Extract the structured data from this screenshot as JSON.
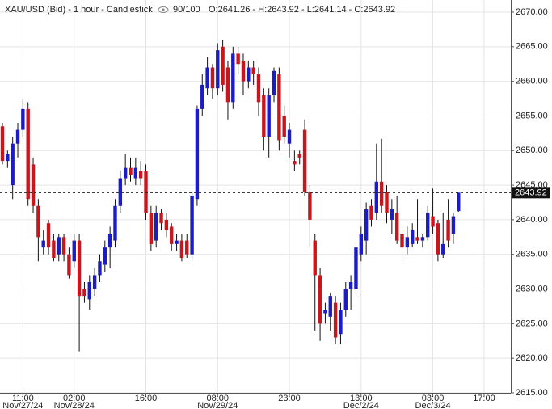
{
  "chart_data": {
    "type": "candlestick",
    "title": "XAU/USD (Bid) - 1 hour - Candlestick",
    "bar_count": "90/100",
    "ohlc_label": "O:2641.26 - H:2643.92 - L:2641.14 - C:2643.92",
    "categories": [
      null,
      null,
      null,
      null,
      "11:00",
      null,
      null,
      null,
      null,
      null,
      null,
      null,
      null,
      null,
      "02:00",
      null,
      null,
      null,
      null,
      null,
      null,
      null,
      null,
      null,
      null,
      null,
      null,
      null,
      "16:00",
      null,
      null,
      null,
      null,
      null,
      null,
      null,
      null,
      null,
      null,
      null,
      null,
      null,
      "08:00",
      null,
      null,
      null,
      null,
      null,
      null,
      null,
      null,
      null,
      null,
      null,
      null,
      null,
      "23:00",
      null,
      null,
      null,
      null,
      null,
      null,
      null,
      null,
      null,
      null,
      null,
      null,
      null,
      "13:00",
      null,
      null,
      null,
      null,
      null,
      null,
      null,
      null,
      null,
      null,
      null,
      null,
      null,
      "03:00",
      null,
      null,
      null,
      null,
      null,
      null,
      null,
      null,
      null,
      "17:00",
      null,
      null,
      null,
      null,
      null
    ],
    "dates": [
      null,
      null,
      null,
      null,
      "Nov/27/24",
      null,
      null,
      null,
      null,
      null,
      null,
      null,
      null,
      null,
      "Nov/28/24",
      null,
      null,
      null,
      null,
      null,
      null,
      null,
      null,
      null,
      null,
      null,
      null,
      null,
      null,
      null,
      null,
      null,
      null,
      null,
      null,
      null,
      null,
      null,
      null,
      null,
      null,
      null,
      "Nov/29/24",
      null,
      null,
      null,
      null,
      null,
      null,
      null,
      null,
      null,
      null,
      null,
      null,
      null,
      null,
      null,
      null,
      null,
      null,
      null,
      null,
      null,
      null,
      null,
      null,
      null,
      null,
      null,
      "Dec/2/24",
      null,
      null,
      null,
      null,
      null,
      null,
      null,
      null,
      null,
      null,
      null,
      null,
      null,
      "Dec/3/24",
      null,
      null,
      null,
      null,
      null,
      null,
      null,
      null,
      null,
      null,
      null,
      null,
      null,
      null,
      null
    ],
    "open": [
      2653.5,
      2648.5,
      2645,
      2651,
      2653,
      2656,
      2648,
      2642,
      2636,
      2639.5,
      2637,
      2635,
      2637.5,
      2635,
      2634,
      2637,
      2630,
      2628.5,
      2630,
      2632,
      2633.5,
      2636,
      2637,
      2642,
      2646,
      2647.5,
      2646,
      2647,
      2647,
      2641,
      2637,
      2641,
      2640,
      2639,
      2636.5,
      2637,
      2637,
      2635,
      2643,
      2656,
      2659,
      2662,
      2659,
      2665,
      2662,
      2657,
      2664,
      2663,
      2660,
      2662,
      2661,
      2658,
      2652,
      2658,
      2661,
      2655,
      2651,
      2648.5,
      2649.5,
      2653,
      2644,
      2637,
      2632,
      2626.5,
      2626,
      2628,
      2623.5,
      2627,
      2630,
      2630,
      2635,
      2637,
      2642,
      2641,
      2645.5,
      2644,
      2640,
      2641,
      2638,
      2636,
      2636.5,
      2637.5,
      2637,
      2637.5,
      2640.5,
      2639.5,
      2635,
      2640,
      2638,
      2641.26,
      null,
      null,
      null,
      null,
      null,
      null,
      null,
      null,
      null,
      null
    ],
    "high": [
      2654,
      2650,
      2652,
      2654,
      2657.5,
      2657,
      2649,
      2643,
      2638.5,
      2640,
      2638,
      2638,
      2638,
      2636,
      2638,
      2638,
      2631,
      2632,
      2633,
      2635,
      2637,
      2639,
      2643,
      2647,
      2649.5,
      2649,
      2649,
      2648.5,
      2648,
      2642,
      2642,
      2641.5,
      2641,
      2639.5,
      2638,
      2638,
      2638,
      2644,
      2656.5,
      2661,
      2663.5,
      2662.5,
      2665.5,
      2666,
      2663,
      2665,
      2665,
      2664,
      2663,
      2663,
      2662,
      2659,
      2659,
      2662,
      2662,
      2656.5,
      2654,
      2650,
      2650,
      2654.5,
      2645,
      2638,
      2633,
      2628,
      2629.5,
      2629,
      2628,
      2631,
      2632,
      2637,
      2639,
      2642.5,
      2643,
      2651,
      2651.7,
      2645,
      2643,
      2643.5,
      2639,
      2639,
      2639.5,
      2643,
      2638,
      2642,
      2644.5,
      2640,
      2641,
      2643,
      2641,
      2643.92,
      null,
      null,
      null,
      null,
      null,
      null,
      null,
      null,
      null,
      null
    ],
    "low": [
      2648,
      2647.5,
      2643,
      2649,
      2652,
      2642,
      2641,
      2634,
      2635,
      2635,
      2634,
      2634,
      2634,
      2631.5,
      2633,
      2621,
      2628,
      2627,
      2629,
      2631,
      2632.5,
      2633,
      2636,
      2641,
      2645,
      2645.5,
      2645,
      2645,
      2640,
      2635.5,
      2636,
      2638.5,
      2637.5,
      2635.5,
      2635.5,
      2634,
      2634.5,
      2634,
      2642,
      2655,
      2658,
      2657.5,
      2658,
      2658.5,
      2654.5,
      2656,
      2661,
      2658,
      2659,
      2659.5,
      2655,
      2650,
      2649,
      2657,
      2650,
      2651,
      2649,
      2647,
      2648,
      2643.5,
      2636,
      2624,
      2622.5,
      2625,
      2624,
      2622,
      2622,
      2626,
      2627,
      2629,
      2634,
      2635,
      2639,
      2640,
      2641,
      2639.5,
      2638,
      2636.5,
      2633.5,
      2635,
      2636,
      2636.5,
      2636,
      2637,
      2638,
      2634,
      2634.5,
      2636,
      2636.5,
      2641.14,
      null,
      null,
      null,
      null,
      null,
      null,
      null,
      null,
      null,
      null
    ],
    "close": [
      2648.5,
      2649.5,
      2651,
      2653,
      2656,
      2643,
      2642,
      2637.5,
      2637,
      2636,
      2634.5,
      2637.5,
      2635,
      2632,
      2637,
      2629,
      2629,
      2631,
      2632,
      2634,
      2636,
      2638,
      2642,
      2646,
      2647.5,
      2646.5,
      2647.5,
      2646,
      2641,
      2636.5,
      2641,
      2639.5,
      2638.5,
      2636.5,
      2637,
      2634.5,
      2635,
      2643.5,
      2656,
      2659.5,
      2662,
      2659,
      2664.5,
      2659.5,
      2657,
      2664,
      2662.5,
      2660,
      2662,
      2661,
      2657,
      2652,
      2658,
      2661.5,
      2651.5,
      2652,
      2653,
      2648,
      2649,
      2644,
      2640,
      2632,
      2625,
      2627,
      2629,
      2623,
      2627,
      2630,
      2631,
      2636,
      2638,
      2641.5,
      2640,
      2645.5,
      2642,
      2641,
      2641.5,
      2637,
      2636,
      2637.5,
      2638.5,
      2637,
      2637.5,
      2641,
      2639,
      2635,
      2636.5,
      2637,
      2640.5,
      2643.92,
      null,
      null,
      null,
      null,
      null,
      null,
      null,
      null,
      null,
      null
    ],
    "up_color": "#1c1cc4",
    "down_color": "#c8161d",
    "last_price": 2643.92,
    "ylim": [
      2615,
      2670
    ],
    "yticks": [
      {
        "value": 2615,
        "label": "2615.00"
      },
      {
        "value": 2620,
        "label": "2620.00"
      },
      {
        "value": 2625,
        "label": "2625.00"
      },
      {
        "value": 2630,
        "label": "2630.00"
      },
      {
        "value": 2635,
        "label": "2635.00"
      },
      {
        "value": 2640,
        "label": "2640.00"
      },
      {
        "value": 2645,
        "label": "2645.00"
      },
      {
        "value": 2650,
        "label": "2650.00"
      },
      {
        "value": 2655,
        "label": "2655.00"
      },
      {
        "value": 2660,
        "label": "2660.00"
      },
      {
        "value": 2665,
        "label": "2665.00"
      },
      {
        "value": 2670,
        "label": "2670.00"
      }
    ],
    "grid": true
  }
}
